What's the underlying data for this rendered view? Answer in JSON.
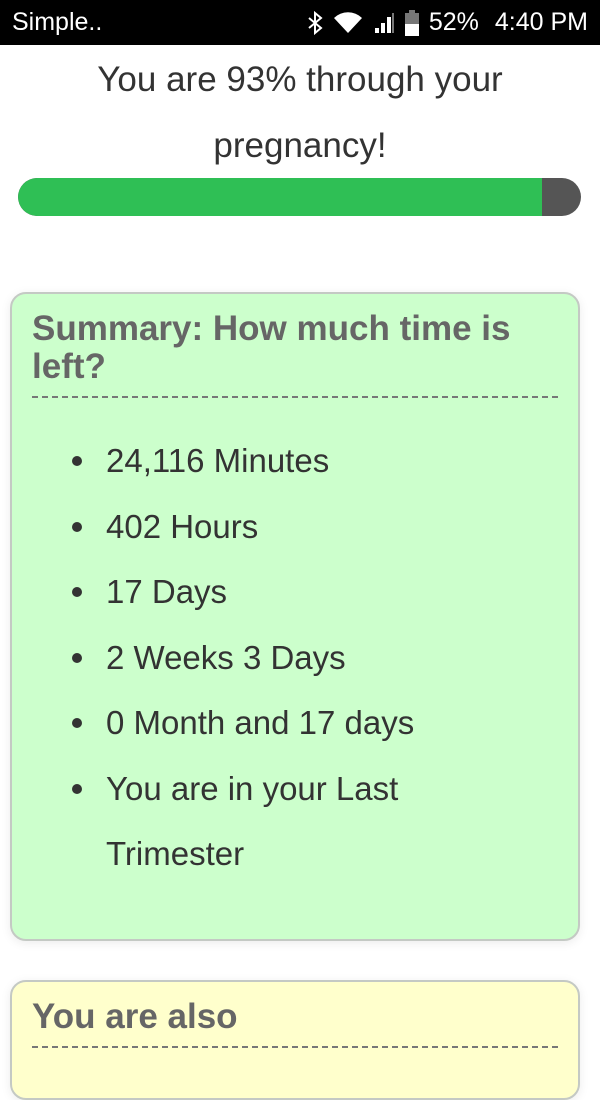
{
  "status_bar": {
    "app": "Simple..",
    "battery": "52%",
    "time": "4:40 PM",
    "icons": [
      "bluetooth-icon",
      "wifi-icon",
      "signal-icon",
      "battery-icon"
    ]
  },
  "progress": {
    "text": "You are 93% through your pregnancy!",
    "percent": 93,
    "fill_color": "#2fbf55"
  },
  "summary": {
    "heading": "Summary: How much time is left?",
    "items": [
      "24,116 Minutes",
      "402 Hours",
      "17 Days",
      "2 Weeks 3 Days",
      "0 Month and 17 days",
      "You are in your Last Trimester"
    ]
  },
  "also": {
    "heading": "You are also"
  }
}
